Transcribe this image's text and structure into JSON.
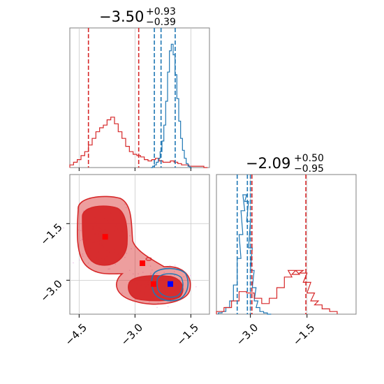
{
  "colors": {
    "red": "#d62728",
    "blue": "#1f77b4",
    "grid": "#c8c8c8",
    "frame": "#808080",
    "scatter": "#e7b9e6"
  },
  "chart_data": [
    {
      "type": "histogram",
      "panel": "marginal-param1",
      "title": {
        "median": "−3.50",
        "plus": "+0.93",
        "minus": "−0.39"
      },
      "xlim": [
        -4.75,
        -1.0
      ],
      "gridlines_x": [
        -4.5,
        -3.0,
        -1.5
      ],
      "series": [
        {
          "name": "",
          "color": "red",
          "x": [
            -4.7,
            -4.6,
            -4.5,
            -4.4,
            -4.3,
            -4.2,
            -4.1,
            -4.0,
            -3.9,
            -3.8,
            -3.7,
            -3.6,
            -3.5,
            -3.4,
            -3.3,
            -3.2,
            -3.1,
            -3.0,
            -2.9,
            -2.8,
            -2.7,
            -2.6,
            -2.5,
            -2.4,
            -2.3,
            -2.2,
            -2.1,
            -2.0,
            -1.9,
            -1.8,
            -1.7,
            -1.6,
            -1.5,
            -1.4,
            -1.3,
            -1.2,
            -1.1
          ],
          "values": [
            0.02,
            0.04,
            0.06,
            0.09,
            0.12,
            0.17,
            0.22,
            0.27,
            0.3,
            0.32,
            0.36,
            0.38,
            0.33,
            0.27,
            0.22,
            0.16,
            0.12,
            0.1,
            0.09,
            0.08,
            0.06,
            0.05,
            0.06,
            0.07,
            0.05,
            0.04,
            0.04,
            0.05,
            0.04,
            0.03,
            0.02,
            0.02,
            0.01,
            0.01,
            0.01,
            0.01,
            0.0
          ]
        },
        {
          "name": "",
          "color": "blue",
          "x": [
            -2.55,
            -2.5,
            -2.45,
            -2.4,
            -2.35,
            -2.3,
            -2.25,
            -2.2,
            -2.15,
            -2.1,
            -2.05,
            -2.0,
            -1.95,
            -1.9,
            -1.85,
            -1.8,
            -1.75,
            -1.7,
            -1.65,
            -1.6,
            -1.55,
            -1.5
          ],
          "values": [
            0.0,
            0.01,
            0.02,
            0.04,
            0.07,
            0.12,
            0.2,
            0.32,
            0.5,
            0.72,
            0.88,
            0.93,
            0.85,
            0.7,
            0.52,
            0.35,
            0.22,
            0.13,
            0.07,
            0.03,
            0.01,
            0.0
          ]
        }
      ],
      "vlines": [
        {
          "x": -4.25,
          "color": "red"
        },
        {
          "x": -2.9,
          "color": "red"
        },
        {
          "x": -2.48,
          "color": "blue"
        },
        {
          "x": -2.3,
          "color": "blue"
        },
        {
          "x": -1.92,
          "color": "blue"
        }
      ]
    },
    {
      "type": "contour",
      "panel": "2d",
      "xlim": [
        -4.75,
        -1.0
      ],
      "ylim": [
        -3.9,
        -0.2
      ],
      "xticks": [
        "−4.5",
        "−3.0",
        "−1.5"
      ],
      "xtick_values": [
        -4.5,
        -3.0,
        -1.5
      ],
      "yticks": [
        "−1.5",
        "−3.0"
      ],
      "ytick_values": [
        -1.5,
        -3.0
      ],
      "markers": [
        {
          "x": -3.8,
          "y": -1.85,
          "color": "red"
        },
        {
          "x": -2.8,
          "y": -2.55,
          "color": "red"
        },
        {
          "x": -2.5,
          "y": -3.1,
          "color": "red"
        },
        {
          "x": -2.05,
          "y": -3.1,
          "color": "blue"
        }
      ]
    },
    {
      "type": "histogram",
      "panel": "marginal-param2",
      "title": {
        "median": "−2.09",
        "plus": "+0.50",
        "minus": "−0.95"
      },
      "xlim": [
        -3.9,
        -0.2
      ],
      "xticks": [
        "−3.0",
        "−1.5"
      ],
      "xtick_values": [
        -3.0,
        -1.5
      ],
      "series": [
        {
          "name": "",
          "color": "blue",
          "x": [
            -3.8,
            -3.7,
            -3.6,
            -3.5,
            -3.4,
            -3.3,
            -3.25,
            -3.2,
            -3.15,
            -3.1,
            -3.05,
            -3.0,
            -2.95,
            -2.9,
            -2.85,
            -2.8,
            -2.7,
            -2.6,
            -2.5
          ],
          "values": [
            0.01,
            0.02,
            0.05,
            0.1,
            0.22,
            0.42,
            0.6,
            0.78,
            0.9,
            0.85,
            0.7,
            0.5,
            0.33,
            0.2,
            0.1,
            0.05,
            0.02,
            0.01,
            0.0
          ]
        },
        {
          "name": "",
          "color": "red",
          "x": [
            -3.8,
            -3.6,
            -3.4,
            -3.2,
            -3.0,
            -2.8,
            -2.6,
            -2.4,
            -2.2,
            -2.0,
            -1.9,
            -1.8,
            -1.7,
            -1.6,
            -1.5,
            -1.4,
            -1.3,
            -1.2,
            -1.0,
            -0.8
          ],
          "values": [
            0.02,
            0.05,
            0.1,
            0.17,
            0.16,
            0.12,
            0.08,
            0.12,
            0.2,
            0.28,
            0.33,
            0.3,
            0.33,
            0.31,
            0.24,
            0.16,
            0.1,
            0.07,
            0.04,
            0.02
          ]
        }
      ],
      "vlines": [
        {
          "x": -3.35,
          "color": "blue"
        },
        {
          "x": -3.08,
          "color": "blue"
        },
        {
          "x": -2.96,
          "color": "red"
        },
        {
          "x": -1.53,
          "color": "red"
        },
        {
          "x": -3.0,
          "color": "blue"
        }
      ]
    }
  ]
}
